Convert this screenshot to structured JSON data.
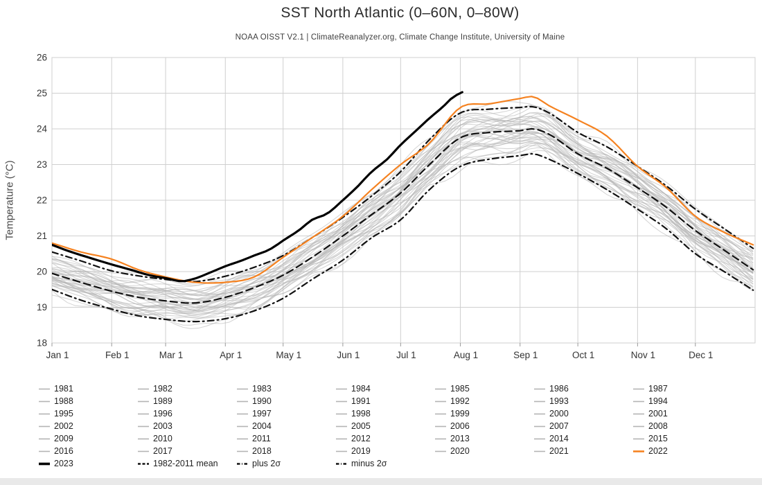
{
  "title": "SST North Atlantic (0–60N, 0–80W)",
  "subtitle": "NOAA OISST V2.1 | ClimateReanalyzer.org, Climate Change Institute, University of Maine",
  "colors": {
    "year_line": "#b4b4b4",
    "year_2022": "#f58220",
    "year_2023": "#000000",
    "stat_line": "#111111",
    "grid": "#cfcfcf",
    "axis_text": "#333333",
    "tick": "#999999",
    "footer_bar": "#e9e9e9"
  },
  "chart_data": {
    "type": "line",
    "title": "SST North Atlantic (0–60N, 0–80W)",
    "xlabel": "",
    "ylabel": "Temperature (°C)",
    "ylim": [
      18,
      26
    ],
    "y_ticks": [
      18,
      19,
      20,
      21,
      22,
      23,
      24,
      25,
      26
    ],
    "x_unit": "day_of_year",
    "x_range_days": [
      0,
      365
    ],
    "x_tick_days": [
      0,
      31,
      59,
      90,
      120,
      151,
      181,
      212,
      243,
      273,
      304,
      334
    ],
    "x_tick_labels": [
      "Jan 1",
      "Feb 1",
      "Mar 1",
      "Apr 1",
      "May 1",
      "Jun 1",
      "Jul 1",
      "Aug 1",
      "Sep 1",
      "Oct 1",
      "Nov 1",
      "Dec 1"
    ],
    "grid": true,
    "legend_position": "bottom",
    "knot_days": [
      0,
      15,
      31,
      45,
      59,
      74,
      90,
      105,
      120,
      135,
      151,
      166,
      181,
      196,
      212,
      227,
      243,
      250,
      258,
      273,
      288,
      304,
      319,
      334,
      349,
      364
    ],
    "series": [
      {
        "name": "1982-2011 mean",
        "style": "dashed",
        "color": "#111111",
        "width": 2.2,
        "values": [
          19.95,
          19.7,
          19.45,
          19.28,
          19.18,
          19.12,
          19.28,
          19.55,
          19.9,
          20.4,
          21.0,
          21.6,
          22.2,
          23.0,
          23.75,
          23.9,
          23.95,
          24.0,
          23.85,
          23.3,
          22.9,
          22.35,
          21.8,
          21.15,
          20.6,
          20.05
        ]
      },
      {
        "name": "plus 2σ",
        "style": "dashdot",
        "color": "#111111",
        "width": 2.2,
        "values": [
          20.55,
          20.3,
          20.02,
          19.88,
          19.78,
          19.72,
          19.87,
          20.12,
          20.45,
          20.95,
          21.52,
          22.12,
          22.8,
          23.7,
          24.45,
          24.55,
          24.6,
          24.62,
          24.45,
          23.9,
          23.5,
          22.95,
          22.4,
          21.75,
          21.2,
          20.65
        ]
      },
      {
        "name": "minus 2σ",
        "style": "dashdot",
        "color": "#111111",
        "width": 2.2,
        "values": [
          19.5,
          19.2,
          18.95,
          18.76,
          18.66,
          18.6,
          18.68,
          18.9,
          19.25,
          19.78,
          20.32,
          20.95,
          21.45,
          22.3,
          22.95,
          23.15,
          23.25,
          23.3,
          23.15,
          22.75,
          22.3,
          21.75,
          21.2,
          20.5,
          20.0,
          19.48
        ]
      },
      {
        "name": "2022",
        "style": "solid",
        "color": "#f58220",
        "width": 2.2,
        "values": [
          20.8,
          20.55,
          20.35,
          20.05,
          19.85,
          19.7,
          19.7,
          19.85,
          20.4,
          20.95,
          21.55,
          22.3,
          23.0,
          23.6,
          24.6,
          24.7,
          24.85,
          24.9,
          24.65,
          24.25,
          23.8,
          22.95,
          22.35,
          21.55,
          21.1,
          20.75
        ]
      },
      {
        "name": "2023",
        "style": "solid",
        "color": "#000000",
        "width": 3.2,
        "days": [
          0,
          10,
          20,
          31,
          41,
          52,
          59,
          67,
          74,
          82,
          90,
          98,
          105,
          113,
          120,
          128,
          135,
          143,
          151,
          158,
          166,
          174,
          181,
          189,
          196,
          203,
          208,
          213
        ],
        "values": [
          20.75,
          20.55,
          20.38,
          20.2,
          20.05,
          19.88,
          19.82,
          19.73,
          19.8,
          19.97,
          20.15,
          20.3,
          20.45,
          20.62,
          20.87,
          21.15,
          21.45,
          21.63,
          22.0,
          22.35,
          22.8,
          23.15,
          23.55,
          23.95,
          24.3,
          24.62,
          24.88,
          25.03
        ]
      }
    ],
    "background_series": {
      "note": "individual years 1981-2021 drawn as thin gray spaghetti lines filling the mean ± 2σ envelope",
      "years_start": 1981,
      "years_end": 2021,
      "color": "#b4b4b4",
      "opacity": 0.55,
      "width": 1.1
    }
  },
  "legend": {
    "years": [
      "1981",
      "1982",
      "1983",
      "1984",
      "1985",
      "1986",
      "1987",
      "1988",
      "1989",
      "1990",
      "1991",
      "1992",
      "1993",
      "1994",
      "1995",
      "1996",
      "1997",
      "1998",
      "1999",
      "2000",
      "2001",
      "2002",
      "2003",
      "2004",
      "2005",
      "2006",
      "2007",
      "2008",
      "2009",
      "2010",
      "2011",
      "2012",
      "2013",
      "2014",
      "2015",
      "2016",
      "2017",
      "2018",
      "2019",
      "2020",
      "2021",
      "2022"
    ],
    "special": [
      {
        "label": "2023",
        "style": "solid-black"
      },
      {
        "label": "1982-2011 mean",
        "style": "dashed"
      },
      {
        "label": "plus 2σ",
        "style": "dashdot"
      },
      {
        "label": "minus 2σ",
        "style": "dashdot"
      }
    ]
  }
}
